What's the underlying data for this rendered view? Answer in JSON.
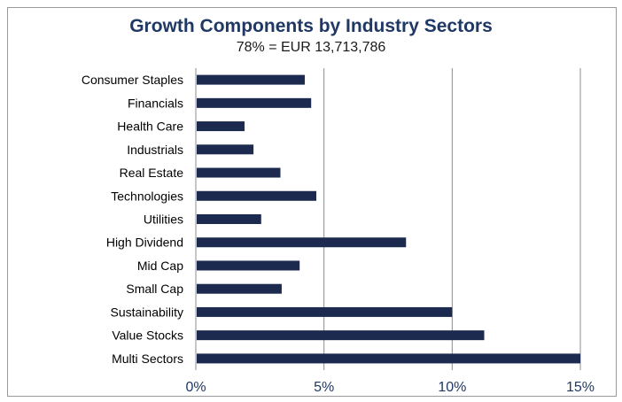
{
  "chart_data": {
    "type": "bar",
    "orientation": "horizontal",
    "title": "Growth Components by Industry Sectors",
    "subtitle": "78% = EUR 13,713,786",
    "categories": [
      "Consumer Staples",
      "Financials",
      "Health Care",
      "Industrials",
      "Real Estate",
      "Technologies",
      "Utilities",
      "High Dividend",
      "Mid Cap",
      "Small Cap",
      "Sustainability",
      "Value Stocks",
      "Multi Sectors"
    ],
    "values": [
      4.25,
      4.5,
      1.9,
      2.25,
      3.3,
      4.7,
      2.55,
      8.2,
      4.05,
      3.35,
      10.0,
      11.25,
      15.0
    ],
    "xlim": [
      0,
      15
    ],
    "xticks": [
      0,
      5,
      10,
      15
    ],
    "xtick_labels": [
      "0%",
      "5%",
      "10%",
      "15%"
    ],
    "grid": true,
    "bar_color": "#1b2a4e",
    "title_color": "#1f3864"
  }
}
